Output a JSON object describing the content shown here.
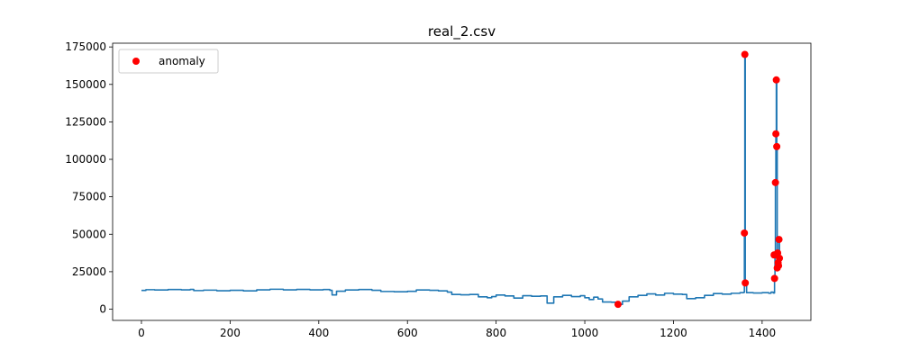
{
  "chart_data": {
    "type": "line",
    "title": "real_2.csv",
    "xlabel": "",
    "ylabel": "",
    "xlim": [
      -65,
      1510
    ],
    "ylim": [
      -7500,
      177500
    ],
    "x_ticks": [
      0,
      200,
      400,
      600,
      800,
      1000,
      1200,
      1400
    ],
    "x_tick_labels": [
      "0",
      "200",
      "400",
      "600",
      "800",
      "1000",
      "1200",
      "1400"
    ],
    "y_ticks": [
      0,
      25000,
      50000,
      75000,
      100000,
      125000,
      150000,
      175000
    ],
    "y_tick_labels": [
      "0",
      "25000",
      "50000",
      "75000",
      "100000",
      "125000",
      "150000",
      "175000"
    ],
    "grid": false,
    "legend": {
      "placement": "top-left",
      "entries": [
        "anomaly"
      ]
    },
    "colors": {
      "line": "#1f77b4",
      "anomaly": "#ff0000"
    },
    "series": [
      {
        "values": [
          [
            0,
            12500
          ],
          [
            10,
            13000
          ],
          [
            30,
            12800
          ],
          [
            60,
            13100
          ],
          [
            90,
            12900
          ],
          [
            110,
            13200
          ],
          [
            118,
            12400
          ],
          [
            140,
            12700
          ],
          [
            170,
            12300
          ],
          [
            200,
            12600
          ],
          [
            230,
            12200
          ],
          [
            260,
            12900
          ],
          [
            290,
            13300
          ],
          [
            320,
            12900
          ],
          [
            350,
            13200
          ],
          [
            380,
            12900
          ],
          [
            410,
            13100
          ],
          [
            425,
            12600
          ],
          [
            430,
            9500
          ],
          [
            440,
            12000
          ],
          [
            460,
            12800
          ],
          [
            490,
            13100
          ],
          [
            520,
            12600
          ],
          [
            540,
            11800
          ],
          [
            570,
            11600
          ],
          [
            600,
            11900
          ],
          [
            620,
            12800
          ],
          [
            650,
            12600
          ],
          [
            670,
            12200
          ],
          [
            690,
            11400
          ],
          [
            700,
            9800
          ],
          [
            720,
            9600
          ],
          [
            740,
            9800
          ],
          [
            760,
            8200
          ],
          [
            780,
            7600
          ],
          [
            790,
            8400
          ],
          [
            800,
            9400
          ],
          [
            820,
            8800
          ],
          [
            840,
            7400
          ],
          [
            860,
            9000
          ],
          [
            880,
            8600
          ],
          [
            900,
            8800
          ],
          [
            915,
            4000
          ],
          [
            930,
            8200
          ],
          [
            950,
            9200
          ],
          [
            970,
            8400
          ],
          [
            990,
            9000
          ],
          [
            1000,
            7600
          ],
          [
            1010,
            6400
          ],
          [
            1020,
            8000
          ],
          [
            1030,
            6800
          ],
          [
            1040,
            4800
          ],
          [
            1060,
            4600
          ],
          [
            1075,
            3200
          ],
          [
            1085,
            5400
          ],
          [
            1100,
            8200
          ],
          [
            1120,
            9200
          ],
          [
            1140,
            10200
          ],
          [
            1160,
            9400
          ],
          [
            1180,
            10600
          ],
          [
            1200,
            10000
          ],
          [
            1220,
            9800
          ],
          [
            1230,
            7000
          ],
          [
            1250,
            7600
          ],
          [
            1270,
            9200
          ],
          [
            1290,
            10400
          ],
          [
            1310,
            10000
          ],
          [
            1330,
            10600
          ],
          [
            1350,
            11000
          ],
          [
            1358,
            11200
          ],
          [
            1360,
            50800
          ],
          [
            1361,
            170000
          ],
          [
            1362,
            17500
          ],
          [
            1365,
            11000
          ],
          [
            1380,
            10800
          ],
          [
            1400,
            11000
          ],
          [
            1415,
            10600
          ],
          [
            1420,
            11400
          ],
          [
            1425,
            10800
          ],
          [
            1428,
            20500
          ],
          [
            1429,
            36000
          ],
          [
            1430,
            84500
          ],
          [
            1431,
            117000
          ],
          [
            1432,
            153000
          ],
          [
            1433,
            108500
          ],
          [
            1434,
            27500
          ],
          [
            1435,
            37500
          ],
          [
            1436,
            31000
          ],
          [
            1437,
            29000
          ],
          [
            1438,
            46500
          ],
          [
            1439,
            34000
          ]
        ]
      }
    ],
    "anomalies": [
      [
        1075,
        3200
      ],
      [
        1360,
        50800
      ],
      [
        1361,
        170000
      ],
      [
        1362,
        17500
      ],
      [
        1427,
        36200
      ],
      [
        1428,
        20500
      ],
      [
        1430,
        84500
      ],
      [
        1431,
        117000
      ],
      [
        1432,
        153000
      ],
      [
        1433,
        108500
      ],
      [
        1434,
        27500
      ],
      [
        1435,
        37500
      ],
      [
        1436,
        31000
      ],
      [
        1437,
        29000
      ],
      [
        1438,
        46500
      ],
      [
        1439,
        34000
      ]
    ]
  }
}
